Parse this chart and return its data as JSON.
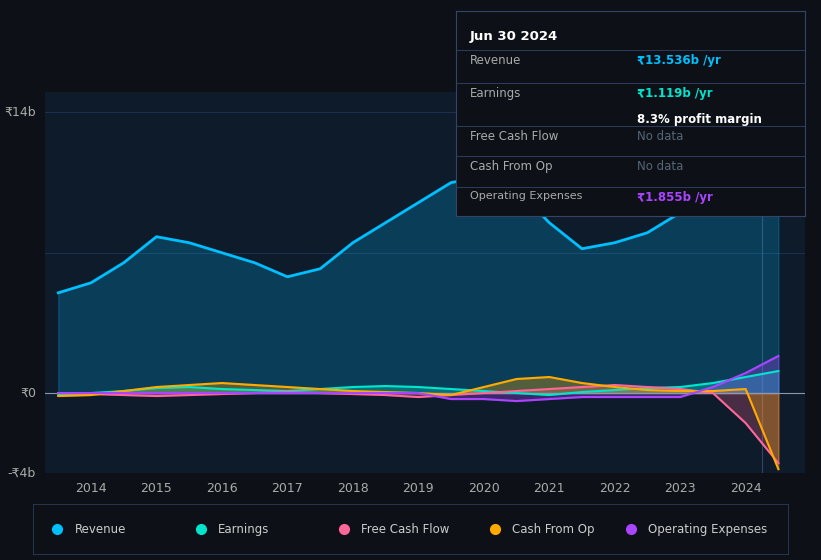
{
  "bg_color": "#0d1117",
  "plot_bg_color": "#0d1b2a",
  "grid_color": "#1e3050",
  "revenue_color": "#00bfff",
  "earnings_color": "#00e5cc",
  "fcf_color": "#ff6699",
  "cashfromop_color": "#ffaa00",
  "opex_color": "#aa44ff",
  "revenue_x": [
    2013.5,
    2014.0,
    2014.5,
    2015.0,
    2015.5,
    2016.0,
    2016.5,
    2017.0,
    2017.5,
    2018.0,
    2018.5,
    2019.0,
    2019.5,
    2020.0,
    2020.5,
    2021.0,
    2021.5,
    2022.0,
    2022.5,
    2023.0,
    2023.5,
    2024.0,
    2024.5
  ],
  "revenue_y": [
    5.0,
    5.5,
    6.5,
    7.8,
    7.5,
    7.0,
    6.5,
    5.8,
    6.2,
    7.5,
    8.5,
    9.5,
    10.5,
    10.8,
    10.2,
    8.5,
    7.2,
    7.5,
    8.0,
    9.0,
    10.5,
    12.5,
    13.5
  ],
  "earnings_x": [
    2013.5,
    2014.0,
    2014.5,
    2015.0,
    2015.5,
    2016.0,
    2016.5,
    2017.0,
    2017.5,
    2018.0,
    2018.5,
    2019.0,
    2019.5,
    2020.0,
    2020.5,
    2021.0,
    2021.5,
    2022.0,
    2022.5,
    2023.0,
    2023.5,
    2024.0,
    2024.5
  ],
  "earnings_y": [
    -0.1,
    0.0,
    0.1,
    0.25,
    0.3,
    0.2,
    0.15,
    0.1,
    0.2,
    0.3,
    0.35,
    0.3,
    0.2,
    0.1,
    0.0,
    -0.1,
    0.05,
    0.15,
    0.25,
    0.3,
    0.5,
    0.8,
    1.1
  ],
  "fcf_x": [
    2013.5,
    2014.0,
    2014.5,
    2015.0,
    2015.5,
    2016.0,
    2016.5,
    2017.0,
    2017.5,
    2018.0,
    2018.5,
    2019.0,
    2019.5,
    2020.0,
    2020.5,
    2021.0,
    2021.5,
    2022.0,
    2022.5,
    2023.0,
    2023.5,
    2024.0,
    2024.5
  ],
  "fcf_y": [
    0.0,
    -0.05,
    -0.1,
    -0.15,
    -0.1,
    -0.05,
    0.0,
    0.05,
    0.0,
    -0.05,
    -0.1,
    -0.2,
    -0.1,
    0.0,
    0.1,
    0.2,
    0.3,
    0.4,
    0.3,
    0.2,
    0.0,
    -1.5,
    -3.5
  ],
  "cashfromop_x": [
    2013.5,
    2014.0,
    2014.5,
    2015.0,
    2015.5,
    2016.0,
    2016.5,
    2017.0,
    2017.5,
    2018.0,
    2018.5,
    2019.0,
    2019.5,
    2020.0,
    2020.5,
    2021.0,
    2021.5,
    2022.0,
    2022.5,
    2023.0,
    2023.5,
    2024.0,
    2024.5
  ],
  "cashfromop_y": [
    -0.15,
    -0.1,
    0.1,
    0.3,
    0.4,
    0.5,
    0.4,
    0.3,
    0.2,
    0.1,
    0.05,
    0.0,
    -0.1,
    0.3,
    0.7,
    0.8,
    0.5,
    0.3,
    0.15,
    0.1,
    0.1,
    0.2,
    -3.8
  ],
  "opex_x": [
    2013.5,
    2014.0,
    2014.5,
    2015.0,
    2015.5,
    2016.0,
    2016.5,
    2017.0,
    2017.5,
    2018.0,
    2018.5,
    2019.0,
    2019.5,
    2020.0,
    2020.5,
    2021.0,
    2021.5,
    2022.0,
    2022.5,
    2023.0,
    2023.5,
    2024.0,
    2024.5
  ],
  "opex_y": [
    0.0,
    0.0,
    0.0,
    0.0,
    0.0,
    0.0,
    0.0,
    0.0,
    0.0,
    0.0,
    0.0,
    0.0,
    -0.3,
    -0.3,
    -0.4,
    -0.3,
    -0.2,
    -0.2,
    -0.2,
    -0.2,
    0.3,
    1.0,
    1.85
  ],
  "tooltip_title": "Jun 30 2024",
  "tooltip_revenue_label": "Revenue",
  "tooltip_revenue_value": "₹13.536b /yr",
  "tooltip_earnings_label": "Earnings",
  "tooltip_earnings_value": "₹1.119b /yr",
  "tooltip_margin": "8.3% profit margin",
  "tooltip_fcf_label": "Free Cash Flow",
  "tooltip_fcf_value": "No data",
  "tooltip_cashop_label": "Cash From Op",
  "tooltip_cashop_value": "No data",
  "tooltip_opex_label": "Operating Expenses",
  "tooltip_opex_value": "₹1.855b /yr",
  "legend_items": [
    "Revenue",
    "Earnings",
    "Free Cash Flow",
    "Cash From Op",
    "Operating Expenses"
  ],
  "legend_colors": [
    "#00bfff",
    "#00e5cc",
    "#ff6699",
    "#ffaa00",
    "#aa44ff"
  ]
}
